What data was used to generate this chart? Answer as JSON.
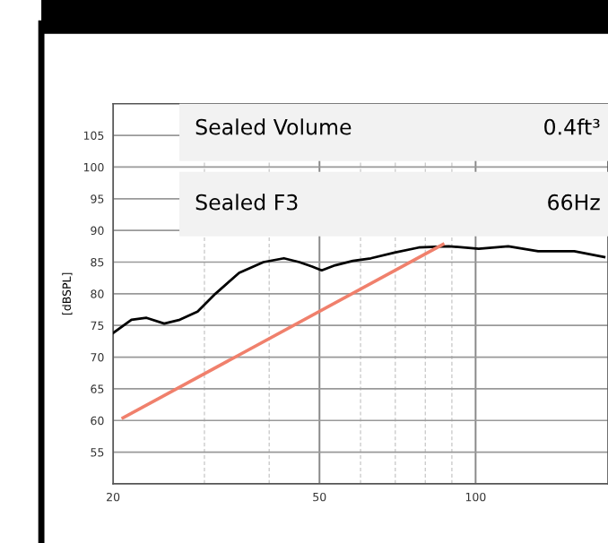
{
  "chart_data": {
    "type": "line",
    "ylabel": "[dBSPL]",
    "log": "x",
    "xlim": [
      20,
      180
    ],
    "xticks": [
      20,
      {
        "value": 30,
        "label": null
      },
      {
        "value": 40,
        "label": null
      },
      50,
      {
        "value": 60,
        "label": null
      },
      {
        "value": 70,
        "label": null
      },
      {
        "value": 80,
        "label": null
      },
      {
        "value": 90,
        "label": null
      },
      100
    ],
    "ylim": [
      50,
      110
    ],
    "yticks": [
      55,
      60,
      65,
      70,
      75,
      80,
      85,
      90,
      95,
      100,
      105
    ],
    "grid": true,
    "marker": "none",
    "line_style": "solid",
    "series": [
      {
        "color": "#000000",
        "x": [
          20.0,
          21.7,
          23.2,
          25.1,
          26.9,
          29.1,
          31.5,
          35.0,
          39.0,
          42.7,
          45.7,
          48.4,
          50.5,
          53.6,
          58.0,
          62.8,
          69.8,
          77.7,
          88.7,
          101.4,
          115.6,
          132,
          155,
          177
        ],
        "values": [
          73.8,
          75.9,
          76.2,
          75.3,
          75.9,
          77.2,
          80.0,
          83.3,
          85.0,
          85.6,
          85.0,
          84.3,
          83.7,
          84.5,
          85.2,
          85.6,
          86.5,
          87.3,
          87.5,
          87.1,
          87.5,
          86.7,
          86.7,
          85.8
        ]
      },
      {
        "type": "line",
        "color": "#f0806c",
        "x": [
          20.9,
          86.5
        ],
        "values": [
          60.4,
          87.8
        ]
      }
    ],
    "annotations": [
      "Sealed Volume",
      "0.4ft³",
      "Sealed F3",
      "66Hz"
    ]
  }
}
